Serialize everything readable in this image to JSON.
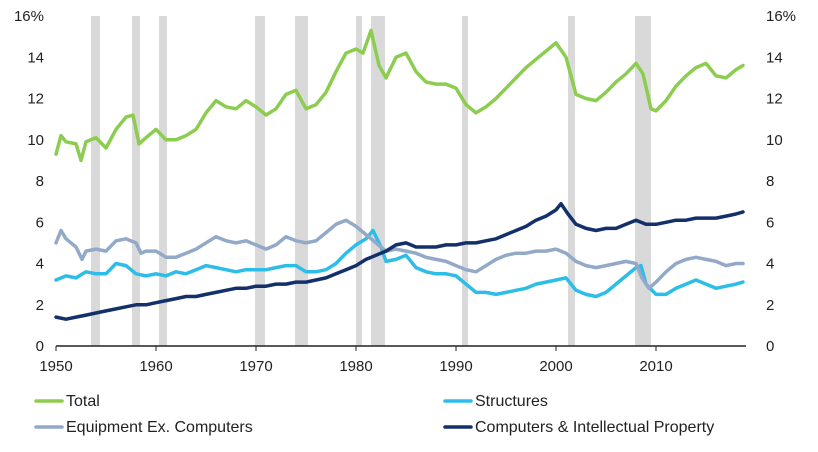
{
  "chart_data": {
    "type": "line",
    "title": "",
    "xlabel": "",
    "ylabel": "",
    "xlim": [
      1950,
      2019
    ],
    "ylim": [
      0,
      16
    ],
    "x_ticks": [
      1950,
      1960,
      1970,
      1980,
      1990,
      2000,
      2010
    ],
    "y_ticks": [
      {
        "value": 0,
        "label": "0"
      },
      {
        "value": 2,
        "label": "2"
      },
      {
        "value": 4,
        "label": "4"
      },
      {
        "value": 6,
        "label": "6"
      },
      {
        "value": 8,
        "label": "8"
      },
      {
        "value": 10,
        "label": "10"
      },
      {
        "value": 12,
        "label": "12"
      },
      {
        "value": 14,
        "label": "14"
      },
      {
        "value": 16,
        "label": "16%"
      }
    ],
    "grid": false,
    "shaded_periods": [
      [
        1953.5,
        1954.4
      ],
      [
        1957.6,
        1958.4
      ],
      [
        1960.3,
        1961.1
      ],
      [
        1969.9,
        1970.9
      ],
      [
        1973.9,
        1975.2
      ],
      [
        1980.0,
        1980.6
      ],
      [
        1981.5,
        1982.9
      ],
      [
        1990.6,
        1991.2
      ],
      [
        2001.2,
        2001.9
      ],
      [
        2007.9,
        2009.5
      ]
    ],
    "series": [
      {
        "name": "Total",
        "color": "#8ccd50",
        "points": [
          [
            1950,
            9.3
          ],
          [
            1950.5,
            10.2
          ],
          [
            1951,
            9.9
          ],
          [
            1952,
            9.8
          ],
          [
            1952.5,
            9.0
          ],
          [
            1953,
            9.9
          ],
          [
            1954,
            10.1
          ],
          [
            1955,
            9.6
          ],
          [
            1956,
            10.5
          ],
          [
            1957,
            11.1
          ],
          [
            1957.7,
            11.2
          ],
          [
            1958.3,
            9.8
          ],
          [
            1959,
            10.1
          ],
          [
            1960,
            10.5
          ],
          [
            1961,
            10.0
          ],
          [
            1962,
            10.0
          ],
          [
            1963,
            10.2
          ],
          [
            1964,
            10.5
          ],
          [
            1965,
            11.3
          ],
          [
            1966,
            11.9
          ],
          [
            1967,
            11.6
          ],
          [
            1968,
            11.5
          ],
          [
            1969,
            11.9
          ],
          [
            1970,
            11.6
          ],
          [
            1971,
            11.2
          ],
          [
            1972,
            11.5
          ],
          [
            1973,
            12.2
          ],
          [
            1974,
            12.4
          ],
          [
            1975,
            11.5
          ],
          [
            1976,
            11.7
          ],
          [
            1977,
            12.3
          ],
          [
            1978,
            13.3
          ],
          [
            1979,
            14.2
          ],
          [
            1980,
            14.4
          ],
          [
            1980.7,
            14.2
          ],
          [
            1981.5,
            15.3
          ],
          [
            1982.3,
            13.6
          ],
          [
            1983,
            13.0
          ],
          [
            1984,
            14.0
          ],
          [
            1985,
            14.2
          ],
          [
            1986,
            13.3
          ],
          [
            1987,
            12.8
          ],
          [
            1988,
            12.7
          ],
          [
            1989,
            12.7
          ],
          [
            1990,
            12.5
          ],
          [
            1991,
            11.7
          ],
          [
            1992,
            11.3
          ],
          [
            1993,
            11.6
          ],
          [
            1994,
            12.0
          ],
          [
            1995,
            12.5
          ],
          [
            1996,
            13.0
          ],
          [
            1997,
            13.5
          ],
          [
            1998,
            13.9
          ],
          [
            1999,
            14.3
          ],
          [
            2000,
            14.7
          ],
          [
            2001,
            14.0
          ],
          [
            2002,
            12.2
          ],
          [
            2003,
            12.0
          ],
          [
            2004,
            11.9
          ],
          [
            2005,
            12.3
          ],
          [
            2006,
            12.8
          ],
          [
            2007,
            13.2
          ],
          [
            2008,
            13.7
          ],
          [
            2008.7,
            13.2
          ],
          [
            2009.5,
            11.5
          ],
          [
            2010,
            11.4
          ],
          [
            2011,
            11.9
          ],
          [
            2012,
            12.6
          ],
          [
            2013,
            13.1
          ],
          [
            2014,
            13.5
          ],
          [
            2015,
            13.7
          ],
          [
            2016,
            13.1
          ],
          [
            2017,
            13.0
          ],
          [
            2018,
            13.4
          ],
          [
            2018.7,
            13.6
          ]
        ]
      },
      {
        "name": "Structures",
        "color": "#2cbde8",
        "points": [
          [
            1950,
            3.2
          ],
          [
            1951,
            3.4
          ],
          [
            1952,
            3.3
          ],
          [
            1953,
            3.6
          ],
          [
            1954,
            3.5
          ],
          [
            1955,
            3.5
          ],
          [
            1956,
            4.0
          ],
          [
            1957,
            3.9
          ],
          [
            1958,
            3.5
          ],
          [
            1959,
            3.4
          ],
          [
            1960,
            3.5
          ],
          [
            1961,
            3.4
          ],
          [
            1962,
            3.6
          ],
          [
            1963,
            3.5
          ],
          [
            1964,
            3.7
          ],
          [
            1965,
            3.9
          ],
          [
            1966,
            3.8
          ],
          [
            1967,
            3.7
          ],
          [
            1968,
            3.6
          ],
          [
            1969,
            3.7
          ],
          [
            1970,
            3.7
          ],
          [
            1971,
            3.7
          ],
          [
            1972,
            3.8
          ],
          [
            1973,
            3.9
          ],
          [
            1974,
            3.9
          ],
          [
            1975,
            3.6
          ],
          [
            1976,
            3.6
          ],
          [
            1977,
            3.7
          ],
          [
            1978,
            4.0
          ],
          [
            1979,
            4.5
          ],
          [
            1980,
            4.9
          ],
          [
            1981,
            5.2
          ],
          [
            1981.7,
            5.6
          ],
          [
            1982.5,
            4.8
          ],
          [
            1983,
            4.1
          ],
          [
            1984,
            4.2
          ],
          [
            1985,
            4.4
          ],
          [
            1986,
            3.8
          ],
          [
            1987,
            3.6
          ],
          [
            1988,
            3.5
          ],
          [
            1989,
            3.5
          ],
          [
            1990,
            3.4
          ],
          [
            1991,
            3.0
          ],
          [
            1992,
            2.6
          ],
          [
            1993,
            2.6
          ],
          [
            1994,
            2.5
          ],
          [
            1995,
            2.6
          ],
          [
            1996,
            2.7
          ],
          [
            1997,
            2.8
          ],
          [
            1998,
            3.0
          ],
          [
            1999,
            3.1
          ],
          [
            2000,
            3.2
          ],
          [
            2001,
            3.3
          ],
          [
            2002,
            2.7
          ],
          [
            2003,
            2.5
          ],
          [
            2004,
            2.4
          ],
          [
            2005,
            2.6
          ],
          [
            2006,
            3.0
          ],
          [
            2007,
            3.4
          ],
          [
            2008,
            3.8
          ],
          [
            2008.5,
            3.9
          ],
          [
            2009,
            3.0
          ],
          [
            2010,
            2.5
          ],
          [
            2011,
            2.5
          ],
          [
            2012,
            2.8
          ],
          [
            2013,
            3.0
          ],
          [
            2014,
            3.2
          ],
          [
            2015,
            3.0
          ],
          [
            2016,
            2.8
          ],
          [
            2017,
            2.9
          ],
          [
            2018,
            3.0
          ],
          [
            2018.7,
            3.1
          ]
        ]
      },
      {
        "name": "Equipment Ex. Computers",
        "color": "#93a9c8",
        "points": [
          [
            1950,
            5.0
          ],
          [
            1950.5,
            5.6
          ],
          [
            1951,
            5.2
          ],
          [
            1952,
            4.8
          ],
          [
            1952.6,
            4.2
          ],
          [
            1953,
            4.6
          ],
          [
            1954,
            4.7
          ],
          [
            1955,
            4.6
          ],
          [
            1956,
            5.1
          ],
          [
            1957,
            5.2
          ],
          [
            1958,
            5.0
          ],
          [
            1958.5,
            4.5
          ],
          [
            1959,
            4.6
          ],
          [
            1960,
            4.6
          ],
          [
            1961,
            4.3
          ],
          [
            1962,
            4.3
          ],
          [
            1963,
            4.5
          ],
          [
            1964,
            4.7
          ],
          [
            1965,
            5.0
          ],
          [
            1966,
            5.3
          ],
          [
            1967,
            5.1
          ],
          [
            1968,
            5.0
          ],
          [
            1969,
            5.1
          ],
          [
            1970,
            4.9
          ],
          [
            1971,
            4.7
          ],
          [
            1972,
            4.9
          ],
          [
            1973,
            5.3
          ],
          [
            1974,
            5.1
          ],
          [
            1975,
            5.0
          ],
          [
            1976,
            5.1
          ],
          [
            1977,
            5.5
          ],
          [
            1978,
            5.9
          ],
          [
            1979,
            6.1
          ],
          [
            1980,
            5.8
          ],
          [
            1981,
            5.4
          ],
          [
            1982,
            5.0
          ],
          [
            1983,
            4.6
          ],
          [
            1984,
            4.7
          ],
          [
            1985,
            4.6
          ],
          [
            1986,
            4.5
          ],
          [
            1987,
            4.3
          ],
          [
            1988,
            4.2
          ],
          [
            1989,
            4.1
          ],
          [
            1990,
            3.9
          ],
          [
            1991,
            3.7
          ],
          [
            1992,
            3.6
          ],
          [
            1993,
            3.9
          ],
          [
            1994,
            4.2
          ],
          [
            1995,
            4.4
          ],
          [
            1996,
            4.5
          ],
          [
            1997,
            4.5
          ],
          [
            1998,
            4.6
          ],
          [
            1999,
            4.6
          ],
          [
            2000,
            4.7
          ],
          [
            2001,
            4.5
          ],
          [
            2002,
            4.1
          ],
          [
            2003,
            3.9
          ],
          [
            2004,
            3.8
          ],
          [
            2005,
            3.9
          ],
          [
            2006,
            4.0
          ],
          [
            2007,
            4.1
          ],
          [
            2008,
            4.0
          ],
          [
            2008.6,
            3.3
          ],
          [
            2009.3,
            2.8
          ],
          [
            2010,
            3.1
          ],
          [
            2011,
            3.6
          ],
          [
            2012,
            4.0
          ],
          [
            2013,
            4.2
          ],
          [
            2014,
            4.3
          ],
          [
            2015,
            4.2
          ],
          [
            2016,
            4.1
          ],
          [
            2017,
            3.9
          ],
          [
            2018,
            4.0
          ],
          [
            2018.7,
            4.0
          ]
        ]
      },
      {
        "name": "Computers & Intellectual Property",
        "color": "#13306b",
        "points": [
          [
            1950,
            1.4
          ],
          [
            1951,
            1.3
          ],
          [
            1952,
            1.4
          ],
          [
            1953,
            1.5
          ],
          [
            1954,
            1.6
          ],
          [
            1955,
            1.7
          ],
          [
            1956,
            1.8
          ],
          [
            1957,
            1.9
          ],
          [
            1958,
            2.0
          ],
          [
            1959,
            2.0
          ],
          [
            1960,
            2.1
          ],
          [
            1961,
            2.2
          ],
          [
            1962,
            2.3
          ],
          [
            1963,
            2.4
          ],
          [
            1964,
            2.4
          ],
          [
            1965,
            2.5
          ],
          [
            1966,
            2.6
          ],
          [
            1967,
            2.7
          ],
          [
            1968,
            2.8
          ],
          [
            1969,
            2.8
          ],
          [
            1970,
            2.9
          ],
          [
            1971,
            2.9
          ],
          [
            1972,
            3.0
          ],
          [
            1973,
            3.0
          ],
          [
            1974,
            3.1
          ],
          [
            1975,
            3.1
          ],
          [
            1976,
            3.2
          ],
          [
            1977,
            3.3
          ],
          [
            1978,
            3.5
          ],
          [
            1979,
            3.7
          ],
          [
            1980,
            3.9
          ],
          [
            1981,
            4.2
          ],
          [
            1982,
            4.4
          ],
          [
            1983,
            4.6
          ],
          [
            1984,
            4.9
          ],
          [
            1985,
            5.0
          ],
          [
            1986,
            4.8
          ],
          [
            1987,
            4.8
          ],
          [
            1988,
            4.8
          ],
          [
            1989,
            4.9
          ],
          [
            1990,
            4.9
          ],
          [
            1991,
            5.0
          ],
          [
            1992,
            5.0
          ],
          [
            1993,
            5.1
          ],
          [
            1994,
            5.2
          ],
          [
            1995,
            5.4
          ],
          [
            1996,
            5.6
          ],
          [
            1997,
            5.8
          ],
          [
            1998,
            6.1
          ],
          [
            1999,
            6.3
          ],
          [
            2000,
            6.6
          ],
          [
            2000.5,
            6.9
          ],
          [
            2001.2,
            6.4
          ],
          [
            2002,
            5.9
          ],
          [
            2003,
            5.7
          ],
          [
            2004,
            5.6
          ],
          [
            2005,
            5.7
          ],
          [
            2006,
            5.7
          ],
          [
            2007,
            5.9
          ],
          [
            2008,
            6.1
          ],
          [
            2009,
            5.9
          ],
          [
            2010,
            5.9
          ],
          [
            2011,
            6.0
          ],
          [
            2012,
            6.1
          ],
          [
            2013,
            6.1
          ],
          [
            2014,
            6.2
          ],
          [
            2015,
            6.2
          ],
          [
            2016,
            6.2
          ],
          [
            2017,
            6.3
          ],
          [
            2018,
            6.4
          ],
          [
            2018.7,
            6.5
          ]
        ]
      }
    ],
    "legend": {
      "placement": "bottom",
      "entries": [
        "Total",
        "Structures",
        "Equipment Ex. Computers",
        "Computers & Intellectual Property"
      ]
    },
    "shade_color": "#d9d9d9",
    "axis_color": "#222222"
  }
}
